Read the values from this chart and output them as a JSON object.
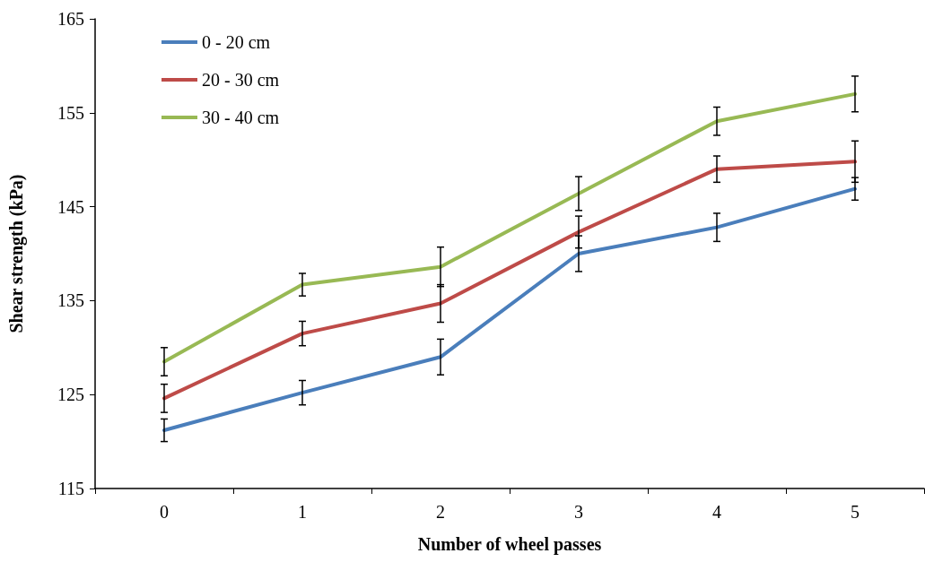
{
  "chart_data": {
    "type": "line",
    "xlabel": "Number of wheel passes",
    "ylabel": "Shear strength (kPa)",
    "categories": [
      "0",
      "1",
      "2",
      "3",
      "4",
      "5"
    ],
    "ylim": [
      115,
      165
    ],
    "yticks": [
      115,
      125,
      135,
      145,
      155,
      165
    ],
    "grid": false,
    "legend": "top left",
    "marker": "none",
    "line_style": "solid",
    "series": [
      {
        "name": "0 - 20 cm",
        "color": "#4a7ebb",
        "values": [
          121.2,
          125.2,
          129.0,
          140.0,
          142.8,
          146.9
        ],
        "errors": [
          1.2,
          1.3,
          1.9,
          1.9,
          1.5,
          1.2
        ]
      },
      {
        "name": "20 - 30 cm",
        "color": "#be4b48",
        "values": [
          124.6,
          131.5,
          134.7,
          142.3,
          149.0,
          149.8
        ],
        "errors": [
          1.5,
          1.3,
          2.0,
          1.7,
          1.4,
          2.2
        ]
      },
      {
        "name": "30 - 40 cm",
        "color": "#98b954",
        "values": [
          128.5,
          136.7,
          138.6,
          146.4,
          154.1,
          157.0
        ],
        "errors": [
          1.5,
          1.2,
          2.1,
          1.8,
          1.5,
          1.9
        ]
      }
    ]
  }
}
